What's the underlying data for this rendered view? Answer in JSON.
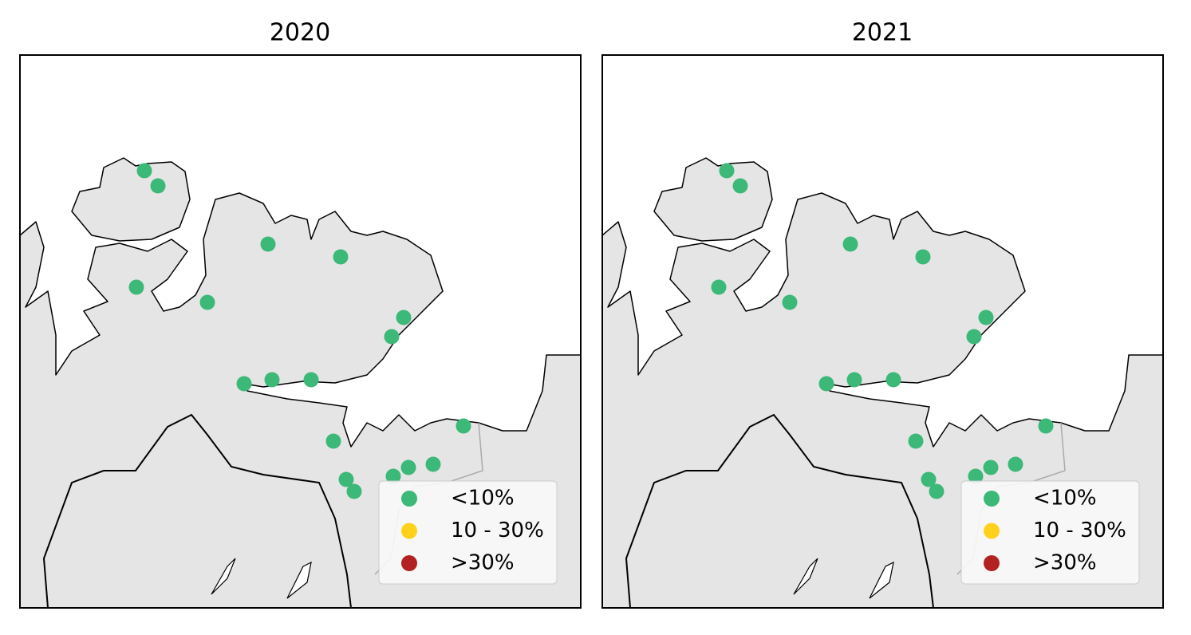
{
  "panels": [
    {
      "title": "2020",
      "legend": [
        {
          "label": "<10%",
          "color": "#3cb878"
        },
        {
          "label": "10 - 30%",
          "color": "#ffd11a"
        },
        {
          "label": ">30%",
          "color": "#b22222"
        }
      ]
    },
    {
      "title": "2021",
      "legend": [
        {
          "label": "<10%",
          "color": "#3cb878"
        },
        {
          "label": "10 - 30%",
          "color": "#ffd11a"
        },
        {
          "label": ">30%",
          "color": "#b22222"
        }
      ]
    }
  ]
}
